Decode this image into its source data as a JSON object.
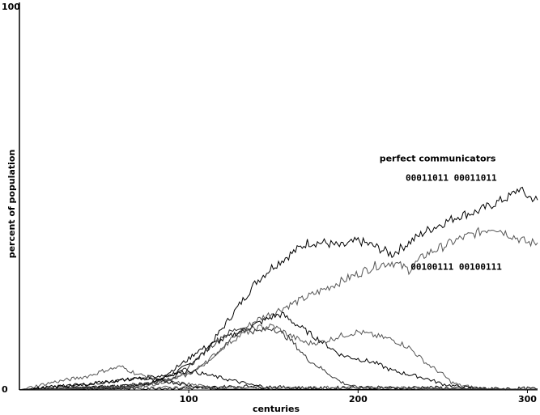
{
  "chart_data": {
    "type": "line",
    "title": "",
    "xlabel": "centuries",
    "ylabel": "percent of population",
    "xlim": [
      0,
      306
    ],
    "ylim": [
      0,
      100
    ],
    "x_ticks": [
      100,
      200,
      300
    ],
    "y_ticks": [
      0,
      100
    ],
    "grid": false,
    "legend": "none",
    "annotations": [
      {
        "id": "title_note",
        "text": "perfect communicators",
        "x": 247,
        "y": 59
      },
      {
        "id": "strategy_a",
        "text": "00011011 00011011",
        "x": 255,
        "y": 54
      },
      {
        "id": "strategy_b",
        "text": "00100111 00100111",
        "x": 258,
        "y": 31
      }
    ],
    "series": [
      {
        "name": "00011011 00011011",
        "color": "#000000",
        "x": [
          0,
          20,
          40,
          60,
          70,
          80,
          90,
          100,
          110,
          120,
          130,
          140,
          150,
          160,
          170,
          180,
          190,
          200,
          210,
          220,
          230,
          240,
          250,
          260,
          270,
          280,
          290,
          295,
          300,
          306
        ],
        "y": [
          0,
          0.3,
          0.5,
          0.8,
          1.2,
          2,
          4,
          6.5,
          10,
          16,
          22,
          28,
          32,
          35,
          38,
          38,
          37,
          38.5,
          37,
          35,
          38,
          41,
          43,
          45,
          46,
          48,
          50,
          52,
          50,
          49
        ]
      },
      {
        "name": "00100111 00100111",
        "color": "#555555",
        "x": [
          0,
          20,
          40,
          60,
          70,
          80,
          90,
          100,
          110,
          120,
          130,
          140,
          150,
          160,
          170,
          180,
          190,
          200,
          210,
          220,
          230,
          240,
          250,
          260,
          270,
          280,
          290,
          295,
          300,
          306
        ],
        "y": [
          0,
          0.2,
          0.4,
          0.6,
          1,
          1.5,
          3,
          4.5,
          7,
          11,
          15,
          18,
          20,
          22,
          24,
          26,
          28,
          30,
          32,
          33,
          31,
          35,
          37,
          39,
          40.5,
          42,
          40,
          39,
          38,
          38
        ]
      },
      {
        "name": "",
        "color": "#000000",
        "x": [
          0,
          40,
          60,
          80,
          90,
          100,
          105,
          110,
          120,
          130,
          140,
          150,
          155,
          160,
          170,
          180,
          190,
          200,
          210,
          220,
          230,
          240,
          250,
          260,
          270,
          306
        ],
        "y": [
          0,
          0.5,
          1,
          2,
          5,
          8,
          10,
          11,
          13,
          15,
          17,
          19,
          19.5,
          18,
          15,
          12,
          9,
          8,
          7,
          5,
          4,
          3,
          1.5,
          0.8,
          0.4,
          0
        ]
      },
      {
        "name": "",
        "color": "#555555",
        "x": [
          0,
          40,
          60,
          80,
          100,
          110,
          120,
          130,
          140,
          150,
          160,
          170,
          180,
          190,
          200,
          210,
          220,
          230,
          240,
          250,
          255,
          260,
          270,
          280,
          306
        ],
        "y": [
          0,
          0.4,
          0.8,
          1.5,
          4,
          7,
          11,
          14,
          16,
          16.5,
          14,
          12,
          12.5,
          14,
          15,
          14,
          13,
          11,
          7,
          4,
          2,
          1.2,
          0.6,
          0.2,
          0
        ]
      },
      {
        "name": "",
        "color": "#333333",
        "x": [
          0,
          60,
          80,
          90,
          100,
          110,
          120,
          130,
          140,
          150,
          160,
          170,
          180,
          190,
          200,
          306
        ],
        "y": [
          0,
          1,
          2,
          3,
          6,
          10,
          14,
          16,
          15,
          16,
          13,
          8,
          5,
          2,
          0.5,
          0
        ]
      },
      {
        "name": "",
        "color": "#000000",
        "x": [
          0,
          40,
          60,
          70,
          80,
          90,
          100,
          110,
          120,
          130,
          140,
          145,
          150,
          306
        ],
        "y": [
          0,
          1.5,
          2.5,
          3,
          3.5,
          4,
          5,
          4,
          3,
          2,
          1,
          0.5,
          0,
          0
        ]
      },
      {
        "name": "",
        "color": "#555555",
        "x": [
          0,
          20,
          40,
          50,
          60,
          70,
          80,
          90,
          100,
          110,
          120,
          306
        ],
        "y": [
          0,
          2,
          3.5,
          5,
          6,
          4,
          3,
          2,
          1.5,
          0.8,
          0,
          0
        ]
      },
      {
        "name": "",
        "color": "#000000",
        "x": [
          0,
          20,
          40,
          60,
          70,
          80,
          90,
          100,
          110,
          120,
          306
        ],
        "y": [
          0,
          0.8,
          1.5,
          2.5,
          3,
          2.5,
          2,
          1.2,
          0.5,
          0.2,
          0
        ]
      },
      {
        "name": "",
        "color": "#000000",
        "x": [
          0,
          60,
          80,
          100,
          120,
          140,
          160,
          180,
          200,
          220,
          240,
          260,
          280,
          300,
          306
        ],
        "y": [
          0,
          0.3,
          0.5,
          0.4,
          0.8,
          1,
          0.6,
          0.4,
          0.8,
          0.5,
          0.7,
          0.4,
          0.3,
          0.4,
          0.3
        ]
      },
      {
        "name": "",
        "color": "#555555",
        "x": [
          0,
          50,
          100,
          150,
          200,
          250,
          306
        ],
        "y": [
          0,
          0.4,
          0.7,
          0.5,
          0.6,
          0.3,
          0.2
        ]
      }
    ]
  }
}
